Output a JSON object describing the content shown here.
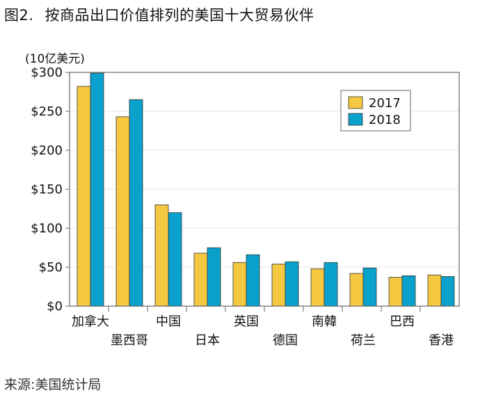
{
  "figure": {
    "number": "图2.",
    "title": "按商品出口价值排列的美国十大贸易伙伴",
    "unit_label": "(10亿美元)",
    "source": "来源:美国统计局"
  },
  "colors": {
    "2017": "#F5C842",
    "2018": "#0AA1CC",
    "axis": "#666666",
    "grid": "#e6e6e6"
  },
  "chart_data": {
    "type": "bar",
    "categories": [
      "加拿大",
      "墨西哥",
      "中国",
      "日本",
      "英国",
      "德国",
      "南韓",
      "荷兰",
      "巴西",
      "香港"
    ],
    "series": [
      {
        "name": "2017",
        "values": [
          282,
          243,
          130,
          68,
          56,
          54,
          48,
          42,
          37,
          40
        ]
      },
      {
        "name": "2018",
        "values": [
          299,
          265,
          120,
          75,
          66,
          57,
          56,
          49,
          39,
          38
        ]
      }
    ],
    "ylim": [
      0,
      300
    ],
    "yticks": [
      0,
      50,
      100,
      150,
      200,
      250,
      300
    ],
    "ytick_labels": [
      "$0",
      "$50",
      "$100",
      "$150",
      "$200",
      "$250",
      "$300"
    ],
    "legend_position": "top-right",
    "grid": true
  }
}
